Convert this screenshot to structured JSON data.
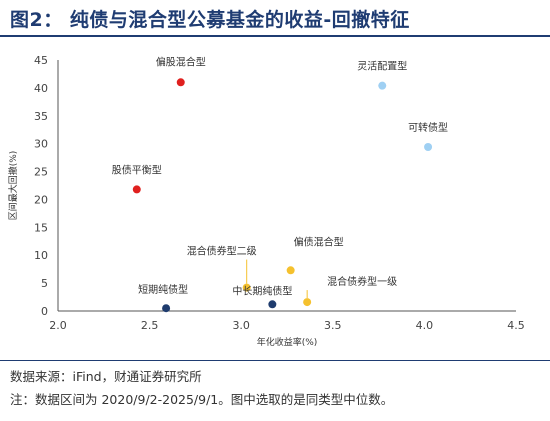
{
  "page": {
    "title": "图2：  纯债与混合型公募基金的收益-回撤特征",
    "source": "数据来源：iFind，财通证券研究所",
    "note": "注：数据区间为 2020/9/2-2025/9/1。图中选取的是同类型中位数。"
  },
  "chart_data": {
    "type": "scatter",
    "xlabel": "年化收益率(%)",
    "ylabel": "区间最大回撤(%)",
    "xlim": [
      2.0,
      4.5
    ],
    "ylim": [
      0,
      45
    ],
    "xticks": [
      "2.0",
      "2.5",
      "3.0",
      "3.5",
      "4.0",
      "4.5"
    ],
    "yticks": [
      "0",
      "5",
      "10",
      "15",
      "20",
      "25",
      "30",
      "35",
      "40",
      "45"
    ],
    "grid": false,
    "points": [
      {
        "name": "偏股混合型",
        "x": 2.67,
        "y": 41.0,
        "color": "#e0201e"
      },
      {
        "name": "股债平衡型",
        "x": 2.43,
        "y": 21.8,
        "color": "#e0201e"
      },
      {
        "name": "灵活配置型",
        "x": 3.77,
        "y": 40.4,
        "color": "#9fd0f3"
      },
      {
        "name": "可转债型",
        "x": 4.02,
        "y": 29.4,
        "color": "#9fd0f3"
      },
      {
        "name": "偏债混合型",
        "x": 3.27,
        "y": 7.3,
        "color": "#f5c12e"
      },
      {
        "name": "混合债券型二级",
        "x": 3.03,
        "y": 4.2,
        "color": "#f5c12e"
      },
      {
        "name": "混合债券型一级",
        "x": 3.36,
        "y": 1.6,
        "color": "#f5c12e"
      },
      {
        "name": "中长期纯债型",
        "x": 3.17,
        "y": 1.2,
        "color": "#1f3c6e"
      },
      {
        "name": "短期纯债型",
        "x": 2.59,
        "y": 0.5,
        "color": "#1f3c6e"
      }
    ]
  }
}
